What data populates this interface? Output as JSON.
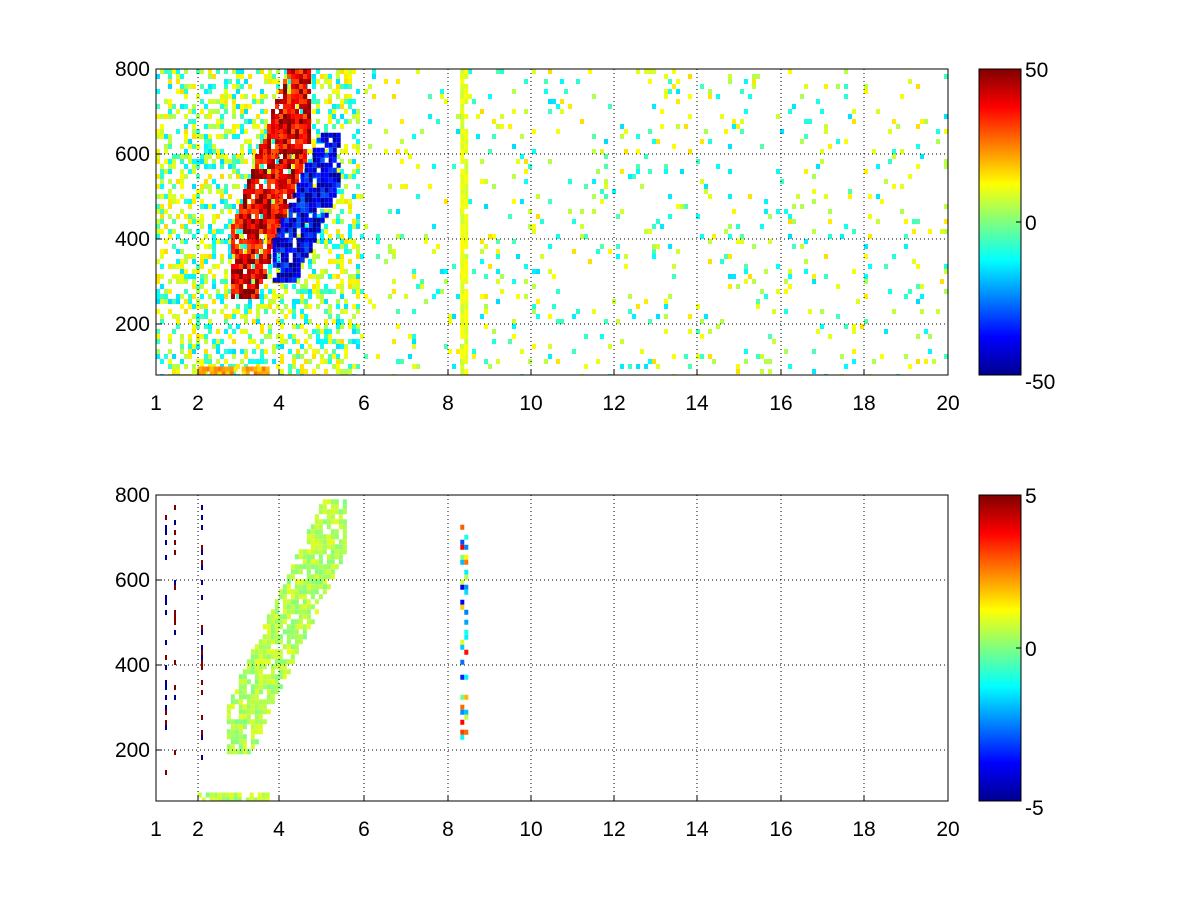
{
  "chart_data": [
    {
      "type": "heatmap",
      "title": "",
      "xlabel": "",
      "ylabel": "",
      "x_tick_labels": [
        "1",
        "2",
        "4",
        "6",
        "8",
        "10",
        "12",
        "14",
        "16",
        "18",
        "20"
      ],
      "y_tick_labels": [
        "200",
        "400",
        "600",
        "800"
      ],
      "xlim": [
        1,
        20
      ],
      "ylim": [
        80,
        800
      ],
      "grid": true,
      "colorbar": {
        "colormap": "jet",
        "clim": [
          -50,
          50
        ],
        "tick_labels": [
          "50",
          "0",
          "-50"
        ]
      },
      "features": [
        {
          "name": "positive-band",
          "x": [
            2.8,
            4.7
          ],
          "y": [
            270,
            800
          ],
          "value": 40
        },
        {
          "name": "negative-band",
          "x": [
            3.8,
            5.4
          ],
          "y": [
            300,
            650
          ],
          "value": -40
        },
        {
          "name": "low-altitude-band",
          "x": [
            2.0,
            3.7
          ],
          "y": [
            80,
            100
          ],
          "value": 20
        },
        {
          "name": "vertical-stripe",
          "x": [
            8.3,
            8.3
          ],
          "y": [
            80,
            800
          ],
          "value": 10
        }
      ]
    },
    {
      "type": "heatmap",
      "title": "",
      "xlabel": "",
      "ylabel": "",
      "x_tick_labels": [
        "1",
        "2",
        "4",
        "6",
        "8",
        "10",
        "12",
        "14",
        "16",
        "18",
        "20"
      ],
      "y_tick_labels": [
        "200",
        "400",
        "600",
        "800"
      ],
      "xlim": [
        1,
        20
      ],
      "ylim": [
        80,
        800
      ],
      "grid": true,
      "colorbar": {
        "colormap": "jet",
        "clim": [
          -5,
          5
        ],
        "tick_labels": [
          "5",
          "0",
          "-5"
        ]
      },
      "features": [
        {
          "name": "main-band",
          "x": [
            2.7,
            5.5
          ],
          "y": [
            200,
            790
          ],
          "value": 0.5
        },
        {
          "name": "low-altitude-band",
          "x": [
            2.0,
            3.7
          ],
          "y": [
            80,
            100
          ],
          "value": 0.5
        },
        {
          "name": "vertical-stripe",
          "x": [
            8.3,
            8.3
          ],
          "y": [
            220,
            730
          ],
          "value": 0
        }
      ]
    }
  ]
}
